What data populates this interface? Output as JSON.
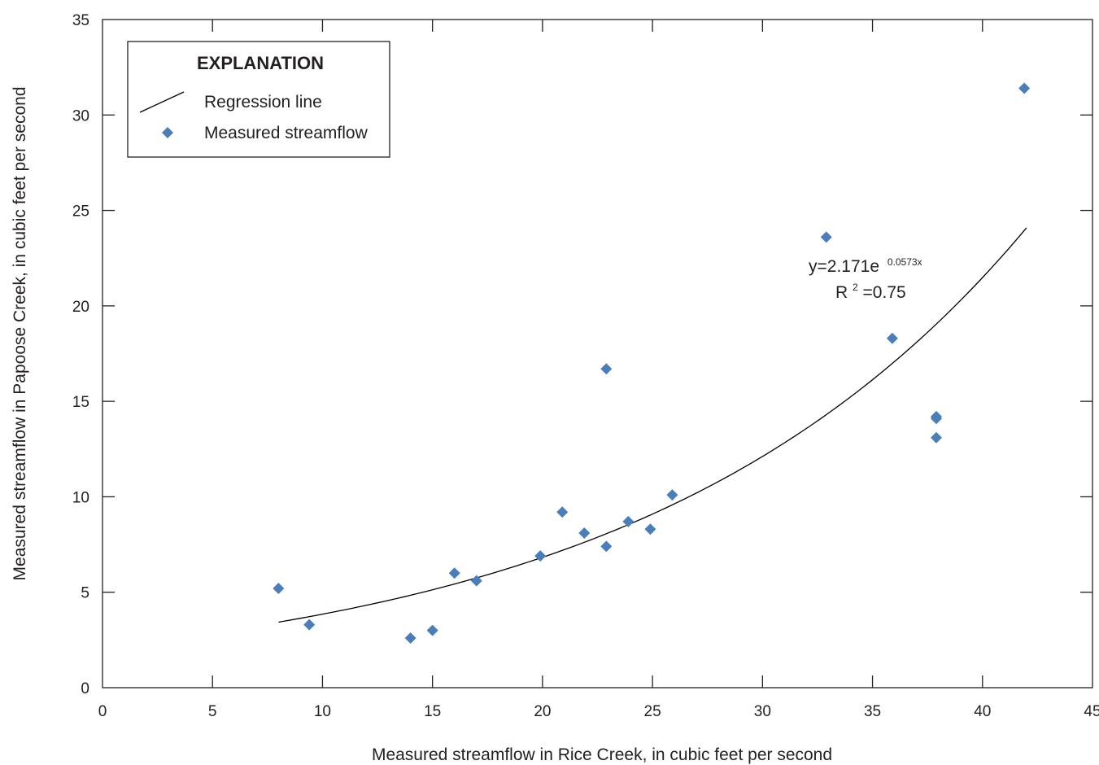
{
  "chart_data": {
    "type": "scatter",
    "xlabel": "Measured streamflow in Rice Creek, in cubic feet per second",
    "ylabel": "Measured streamflow in Papoose Creek, in cubic feet per second",
    "xlim": [
      0,
      45
    ],
    "ylim": [
      0,
      35
    ],
    "xticks": [
      0,
      5,
      10,
      15,
      20,
      25,
      30,
      35,
      40,
      45
    ],
    "yticks": [
      0,
      5,
      10,
      15,
      20,
      25,
      30,
      35
    ],
    "grid": false,
    "legend": {
      "placement": "top-left",
      "title": "EXPLANATION",
      "entries": [
        {
          "name": "Regression line",
          "kind": "line",
          "color": "#000000"
        },
        {
          "name": "Measured streamflow",
          "kind": "marker",
          "color": "#4a7ebb"
        }
      ]
    },
    "series": [
      {
        "name": "Measured streamflow",
        "marker": "diamond",
        "color": "#4a7ebb",
        "points": [
          [
            8,
            5.2
          ],
          [
            9.4,
            3.3
          ],
          [
            14,
            2.6
          ],
          [
            15,
            3.0
          ],
          [
            16,
            6.0
          ],
          [
            17,
            5.6
          ],
          [
            19.9,
            6.9
          ],
          [
            20.9,
            9.2
          ],
          [
            21.9,
            8.1
          ],
          [
            22.9,
            16.7
          ],
          [
            22.9,
            7.4
          ],
          [
            23.9,
            8.7
          ],
          [
            24.9,
            8.3
          ],
          [
            25.9,
            10.1
          ],
          [
            32.9,
            23.6
          ],
          [
            35.9,
            18.3
          ],
          [
            37.9,
            14.2
          ],
          [
            37.9,
            14.1
          ],
          [
            37.9,
            13.1
          ],
          [
            41.9,
            31.4
          ]
        ]
      },
      {
        "name": "Regression line",
        "kind": "curve",
        "color": "#000000",
        "equation": {
          "a": 2.171,
          "b": 0.0573
        },
        "x_range": [
          8,
          42
        ]
      }
    ],
    "annotations": {
      "equation_main": "y=2.171e",
      "equation_exp": "0.0573x",
      "r2_prefix": "R",
      "r2_sup": "2",
      "r2_value": "=0.75"
    }
  }
}
